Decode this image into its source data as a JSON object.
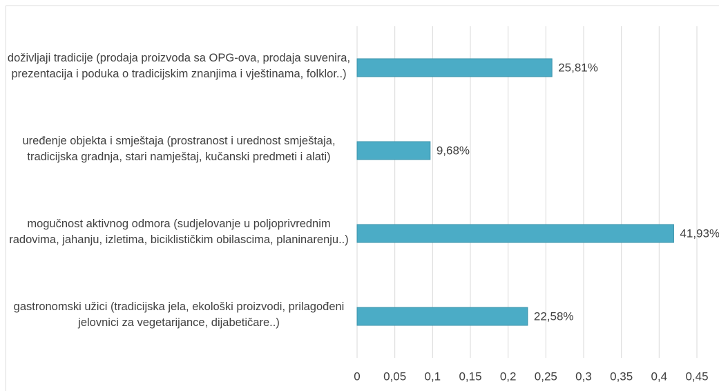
{
  "chart_data": {
    "type": "bar",
    "orientation": "horizontal",
    "categories": [
      "doživljaji tradicije (prodaja proizvoda sa OPG-ova, prodaja suvenira, prezentacija i poduka o tradicijskim znanjima i vještinama, folklor..)",
      "uređenje objekta i smještaja (prostranost i urednost smještaja, tradicijska gradnja, stari namještaj, kučanski predmeti i alati)",
      "mogučnost aktivnog odmora (sudjelovanje u poljoprivrednim radovima, jahanju, izletima, biciklističkim obilascima, planinarenju..)",
      "gastronomski užici (tradicijska jela, ekološki proizvodi, prilagođeni jelovnici za vegetarijance, dijabetičare..)"
    ],
    "values": [
      0.2581,
      0.0968,
      0.4193,
      0.2258
    ],
    "value_labels": [
      "25,81%",
      "9,68%",
      "41,93%",
      "22,58%"
    ],
    "color": "#4bacc6",
    "xlim": [
      0,
      0.45
    ],
    "xticks": [
      0,
      {
        "value": 0.05,
        "label": "0,05"
      },
      {
        "value": 0.1,
        "label": "0,1"
      },
      {
        "value": 0.15,
        "label": "0,15"
      },
      {
        "value": 0.2,
        "label": "0,2"
      },
      {
        "value": 0.25,
        "label": "0,25"
      },
      {
        "value": 0.3,
        "label": "0,3"
      },
      {
        "value": 0.35,
        "label": "0,35"
      },
      {
        "value": 0.4,
        "label": "0,4"
      },
      {
        "value": 0.45,
        "label": "0,45"
      }
    ],
    "grid": true
  }
}
